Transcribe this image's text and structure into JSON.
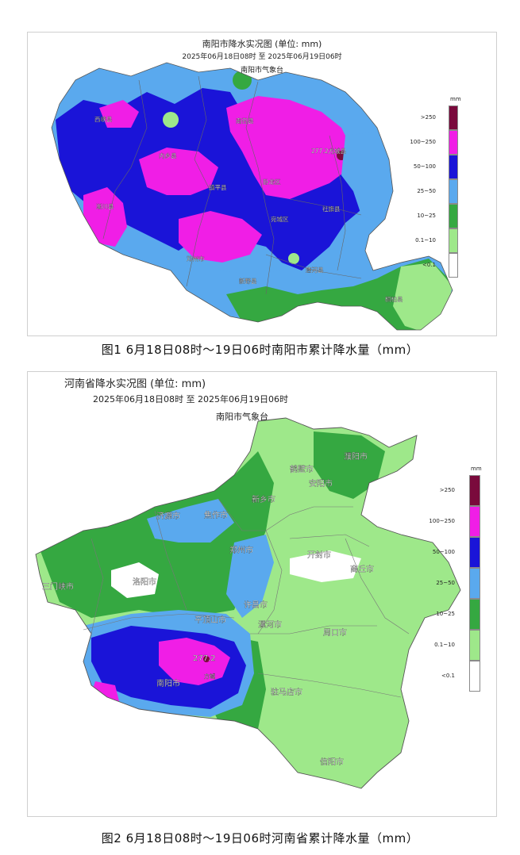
{
  "figure1": {
    "title": "南阳市降水实况图 (单位: mm)",
    "period": "2025年06月18日08时  至  2025年06月19日06时",
    "issuer": "南阳市气象台",
    "labels": [
      "西峡县",
      "南召县",
      "内乡县",
      "镇平县",
      "卧龙区",
      "277.2方城县",
      "社旗县",
      "淅川县",
      "宛城区",
      "邓州市",
      "唐河县",
      "新野县",
      "桐柏县"
    ],
    "caption": "图1   6月18日08时～19日06时南阳市累计降水量（mm）"
  },
  "figure2": {
    "title": "河南省降水实况图 (单位: mm)",
    "period": "2025年06月18日08时  至  2025年06月19日06时",
    "issuer": "南阳市气象台",
    "labels": [
      "濮阳市",
      "鹤壁市",
      "安阳市",
      "新乡市",
      "济源市",
      "焦作市",
      "郑州市",
      "开封市",
      "商丘市",
      "三门峡市",
      "洛阳市",
      "许昌市",
      "平顶山市",
      "漯河市",
      "周口市",
      "277.2",
      "方城",
      "南阳市",
      "驻马店市",
      "信阳市"
    ],
    "caption": "图2   6月18日08时～19日06时河南省累计降水量（mm）"
  },
  "legend": {
    "unit": "mm",
    "classes": [
      {
        "label": ">250",
        "color": "#7a0a3c"
      },
      {
        "label": "100~250",
        "color": "#f01ee6"
      },
      {
        "label": "50~100",
        "color": "#1a14d8"
      },
      {
        "label": "25~50",
        "color": "#5aa9ee"
      },
      {
        "label": "10~25",
        "color": "#35a841"
      },
      {
        "label": "0.1~10",
        "color": "#9ee88a"
      },
      {
        "label": "<0.1",
        "color": "#ffffff"
      }
    ]
  }
}
